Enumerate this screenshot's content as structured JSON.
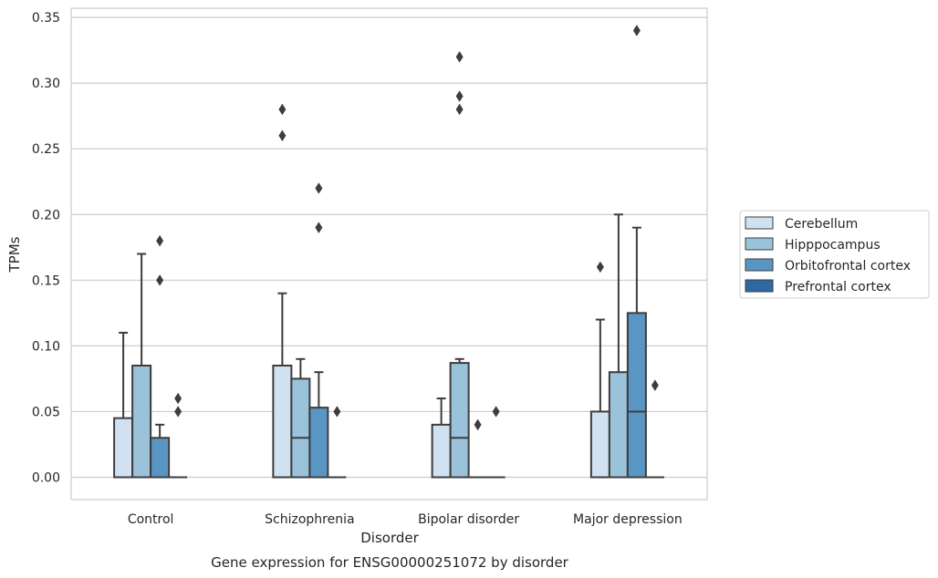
{
  "chart_data": {
    "type": "box",
    "xlabel": "Disorder",
    "ylabel": "TPMs",
    "caption": "Gene expression for ENSG00000251072 by disorder",
    "categories": [
      "Control",
      "Schizophrenia",
      "Bipolar disorder",
      "Major depression"
    ],
    "ylim": [
      -0.017,
      0.357
    ],
    "yticks": [
      "0.00",
      "0.05",
      "0.10",
      "0.15",
      "0.20",
      "0.25",
      "0.30",
      "0.35"
    ],
    "grid": true,
    "legend_position": "right",
    "series": [
      {
        "name": "Cerebellum",
        "color": "#d0e1f2",
        "boxes": [
          {
            "q1": 0,
            "median": 0,
            "q3": 0.045,
            "whisker_low": 0,
            "whisker_high": 0.11,
            "outliers": []
          },
          {
            "q1": 0,
            "median": 0,
            "q3": 0.085,
            "whisker_low": 0,
            "whisker_high": 0.14,
            "outliers": [
              0.26,
              0.28
            ]
          },
          {
            "q1": 0,
            "median": 0,
            "q3": 0.04,
            "whisker_low": 0,
            "whisker_high": 0.06,
            "outliers": []
          },
          {
            "q1": 0,
            "median": 0,
            "q3": 0.05,
            "whisker_low": 0,
            "whisker_high": 0.12,
            "outliers": [
              0.16
            ]
          }
        ]
      },
      {
        "name": "Hipppocampus",
        "color": "#9ac3db",
        "boxes": [
          {
            "q1": 0,
            "median": 0,
            "q3": 0.085,
            "whisker_low": 0,
            "whisker_high": 0.17,
            "outliers": []
          },
          {
            "q1": 0,
            "median": 0.03,
            "q3": 0.075,
            "whisker_low": 0,
            "whisker_high": 0.09,
            "outliers": []
          },
          {
            "q1": 0,
            "median": 0.03,
            "q3": 0.087,
            "whisker_low": 0,
            "whisker_high": 0.09,
            "outliers": [
              0.28,
              0.29,
              0.32
            ]
          },
          {
            "q1": 0,
            "median": 0,
            "q3": 0.08,
            "whisker_low": 0,
            "whisker_high": 0.2,
            "outliers": []
          }
        ]
      },
      {
        "name": "Orbitofrontal cortex",
        "color": "#5a96c3",
        "boxes": [
          {
            "q1": 0,
            "median": 0,
            "q3": 0.03,
            "whisker_low": 0,
            "whisker_high": 0.04,
            "outliers": [
              0.15,
              0.18
            ]
          },
          {
            "q1": 0,
            "median": 0,
            "q3": 0.053,
            "whisker_low": 0,
            "whisker_high": 0.08,
            "outliers": [
              0.19,
              0.22
            ]
          },
          {
            "q1": 0,
            "median": 0,
            "q3": 0,
            "whisker_low": 0,
            "whisker_high": 0,
            "outliers": [
              0.04
            ]
          },
          {
            "q1": 0,
            "median": 0.05,
            "q3": 0.125,
            "whisker_low": 0,
            "whisker_high": 0.19,
            "outliers": [
              0.34
            ]
          }
        ]
      },
      {
        "name": "Prefrontal cortex",
        "color": "#2f68a5",
        "boxes": [
          {
            "q1": 0,
            "median": 0,
            "q3": 0,
            "whisker_low": 0,
            "whisker_high": 0,
            "outliers": [
              0.05,
              0.06
            ]
          },
          {
            "q1": 0,
            "median": 0,
            "q3": 0,
            "whisker_low": 0,
            "whisker_high": 0,
            "outliers": [
              0.05
            ]
          },
          {
            "q1": 0,
            "median": 0,
            "q3": 0,
            "whisker_low": 0,
            "whisker_high": 0,
            "outliers": [
              0.05
            ]
          },
          {
            "q1": 0,
            "median": 0,
            "q3": 0,
            "whisker_low": 0,
            "whisker_high": 0,
            "outliers": [
              0.07
            ]
          }
        ]
      }
    ]
  }
}
